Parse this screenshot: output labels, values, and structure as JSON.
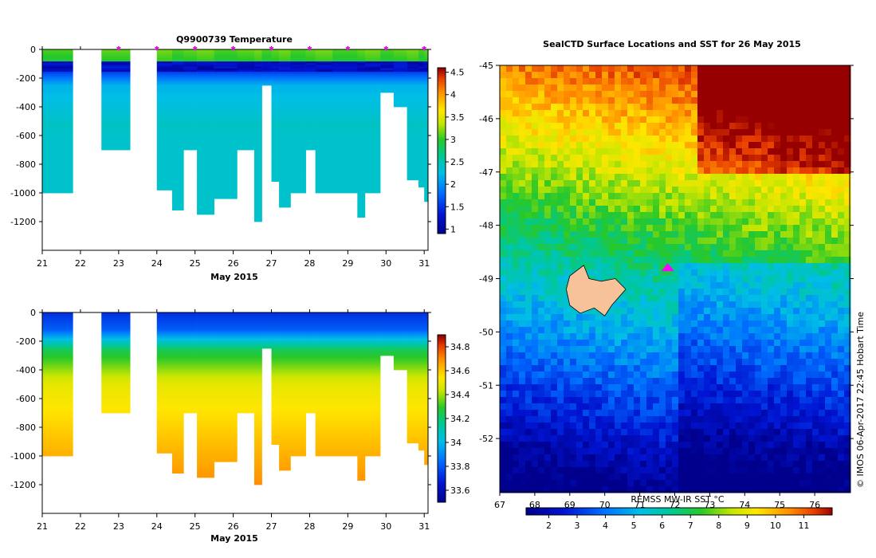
{
  "chart_data": [
    {
      "type": "heatmap",
      "title": "Q9900739  Temperature",
      "xlabel": "May 2015",
      "ylabel": "",
      "x_ticks": [
        "21",
        "22",
        "23",
        "24",
        "25",
        "26",
        "27",
        "28",
        "29",
        "30",
        "31"
      ],
      "y_ticks": [
        "0",
        "-200",
        "-400",
        "-600",
        "-800",
        "-1000",
        "-1200"
      ],
      "xlim": [
        21,
        31.1
      ],
      "ylim": [
        -1400,
        0
      ],
      "colorbar": {
        "ticks": [
          "1",
          "1.5",
          "2",
          "2.5",
          "3",
          "3.5",
          "4",
          "4.5"
        ],
        "range": [
          0.9,
          4.6
        ]
      },
      "profile_markers_day": [
        23,
        24,
        25,
        26,
        27,
        28,
        29,
        30,
        31
      ],
      "profiles": [
        {
          "t0": 21.0,
          "t1": 21.8,
          "max_depth": 1000
        },
        {
          "t0": 22.55,
          "t1": 23.3,
          "max_depth": 700
        },
        {
          "t0": 24.0,
          "t1": 24.4,
          "max_depth": 980
        },
        {
          "t0": 24.4,
          "t1": 24.7,
          "max_depth": 1120
        },
        {
          "t0": 24.7,
          "t1": 25.05,
          "max_depth": 700
        },
        {
          "t0": 25.05,
          "t1": 25.5,
          "max_depth": 1150
        },
        {
          "t0": 25.5,
          "t1": 26.1,
          "max_depth": 1040
        },
        {
          "t0": 26.1,
          "t1": 26.55,
          "max_depth": 700
        },
        {
          "t0": 26.55,
          "t1": 26.75,
          "max_depth": 1200
        },
        {
          "t0": 26.75,
          "t1": 27.0,
          "max_depth": 250
        },
        {
          "t0": 27.0,
          "t1": 27.2,
          "max_depth": 920
        },
        {
          "t0": 27.2,
          "t1": 27.5,
          "max_depth": 1100
        },
        {
          "t0": 27.5,
          "t1": 27.9,
          "max_depth": 1000
        },
        {
          "t0": 27.9,
          "t1": 28.15,
          "max_depth": 700
        },
        {
          "t0": 28.15,
          "t1": 28.6,
          "max_depth": 1000
        },
        {
          "t0": 28.6,
          "t1": 29.25,
          "max_depth": 1000
        },
        {
          "t0": 29.25,
          "t1": 29.45,
          "max_depth": 1170
        },
        {
          "t0": 29.45,
          "t1": 29.85,
          "max_depth": 1000
        },
        {
          "t0": 29.85,
          "t1": 30.2,
          "max_depth": 300
        },
        {
          "t0": 30.2,
          "t1": 30.55,
          "max_depth": 400
        },
        {
          "t0": 30.55,
          "t1": 30.85,
          "max_depth": 910
        },
        {
          "t0": 30.85,
          "t1": 31.0,
          "max_depth": 960
        },
        {
          "t0": 31.0,
          "t1": 31.1,
          "max_depth": 1060
        }
      ]
    },
    {
      "type": "heatmap",
      "title": "",
      "xlabel": "May 2015",
      "ylabel": "",
      "x_ticks": [
        "21",
        "22",
        "23",
        "24",
        "25",
        "26",
        "27",
        "28",
        "29",
        "30",
        "31"
      ],
      "y_ticks": [
        "0",
        "-200",
        "-400",
        "-600",
        "-800",
        "-1000",
        "-1200"
      ],
      "xlim": [
        21,
        31.1
      ],
      "ylim": [
        -1400,
        0
      ],
      "colorbar": {
        "ticks": [
          "33.6",
          "33.8",
          "34",
          "34.2",
          "34.4",
          "34.6",
          "34.8"
        ],
        "range": [
          33.5,
          34.9
        ]
      }
    },
    {
      "type": "heatmap",
      "title": "SealCTD Surface Locations and SST for 26 May 2015",
      "xlabel": "",
      "ylabel": "",
      "x_ticks": [
        "67",
        "68",
        "69",
        "70",
        "71",
        "72",
        "73",
        "74",
        "75",
        "76"
      ],
      "y_ticks": [
        "-45",
        "-46",
        "-47",
        "-48",
        "-49",
        "-50",
        "-51",
        "-52"
      ],
      "xlim": [
        67,
        77
      ],
      "ylim": [
        -53,
        -45
      ],
      "colorbar": {
        "label": "REMSS MW-IR SST °C",
        "ticks": [
          "2",
          "3",
          "4",
          "5",
          "6",
          "7",
          "8",
          "9",
          "10",
          "11"
        ],
        "range": [
          1.2,
          12
        ]
      },
      "seal_location": {
        "lon": 71.8,
        "lat": -48.8
      }
    }
  ],
  "credit": "© IMOS 06-Apr-2017 22:45 Hobart Time"
}
